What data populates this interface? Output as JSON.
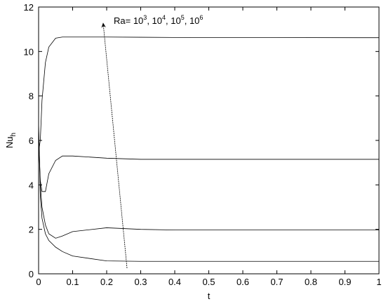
{
  "chart_data": {
    "type": "line",
    "x": [
      0,
      0.005,
      0.01,
      0.02,
      0.03,
      0.05,
      0.07,
      0.1,
      0.2,
      0.3,
      0.4,
      1
    ],
    "series": [
      {
        "color": "#000000",
        "values": [
          6.8,
          3.5,
          2.5,
          1.8,
          1.5,
          1.2,
          1.0,
          0.8,
          0.58,
          0.56,
          0.56,
          0.56
        ]
      },
      {
        "color": "#000000",
        "values": [
          6.5,
          4.0,
          3.0,
          2.2,
          1.8,
          1.6,
          1.7,
          1.9,
          2.07,
          2.0,
          1.97,
          1.97
        ]
      },
      {
        "color": "#000000",
        "values": [
          6.0,
          4.2,
          3.7,
          3.7,
          4.5,
          5.1,
          5.3,
          5.3,
          5.2,
          5.15,
          5.15,
          5.15
        ]
      },
      {
        "color": "#000000",
        "values": [
          5.5,
          6.0,
          7.8,
          9.5,
          10.2,
          10.6,
          10.65,
          10.65,
          10.65,
          10.64,
          10.63,
          10.62
        ]
      }
    ],
    "xlabel": "t",
    "ylabel": {
      "text": "Nu",
      "sub": "h"
    },
    "annotation": [
      {
        "text": "Ra= 10"
      },
      {
        "sup": "3"
      },
      {
        "text": ", 10"
      },
      {
        "sup": "4"
      },
      {
        "text": ", 10"
      },
      {
        "sup": "5"
      },
      {
        "text": ", 10"
      },
      {
        "sup": "6"
      }
    ],
    "xlim": [
      0,
      1
    ],
    "xticks": [
      0,
      0.1,
      0.2,
      0.3,
      0.4,
      0.5,
      0.6,
      0.7,
      0.8,
      0.9,
      1
    ],
    "ylim": [
      0,
      12
    ],
    "yticks": [
      0,
      2,
      4,
      6,
      8,
      10,
      12
    ],
    "grid": false
  }
}
